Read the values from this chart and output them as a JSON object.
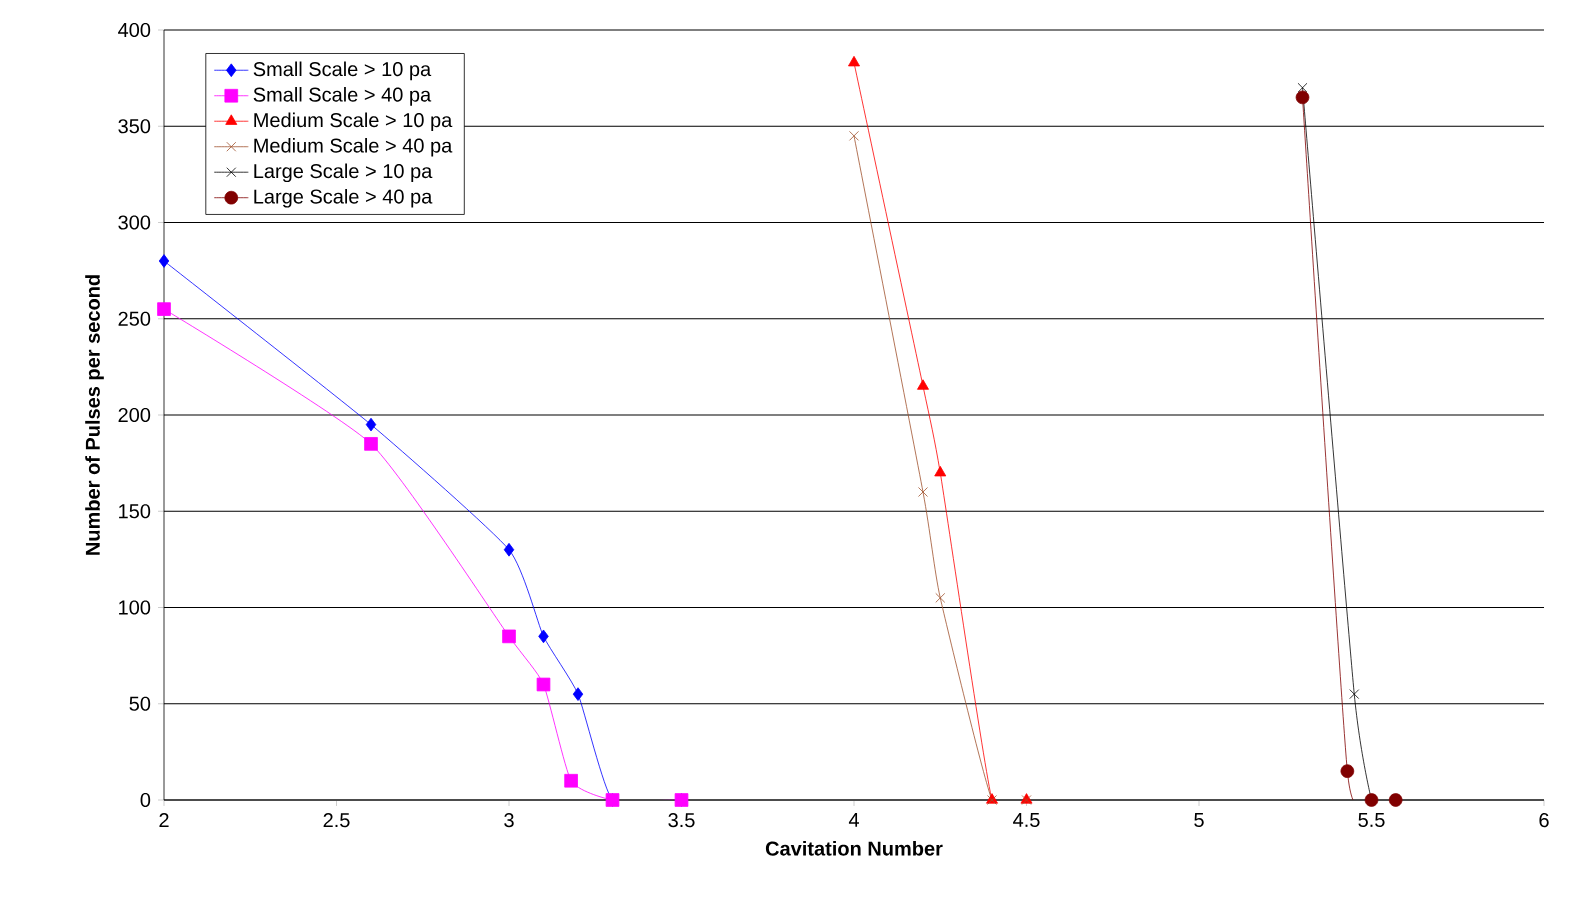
{
  "chart_data": {
    "type": "line",
    "xlabel": "Cavitation Number",
    "ylabel": "Number of Pulses per second",
    "xlim": [
      2,
      6
    ],
    "xticks": [
      2,
      2.5,
      3,
      3.5,
      4,
      4.5,
      5,
      5.5,
      6
    ],
    "ylim": [
      0,
      400
    ],
    "yticks": [
      0,
      50,
      100,
      150,
      200,
      250,
      300,
      350,
      400
    ],
    "grid": "y",
    "legend": "top left",
    "series": [
      {
        "name": "Small Scale  > 10 pa",
        "color": "#0000ff",
        "marker": "diamond",
        "x": [
          2,
          2.6,
          3,
          3.1,
          3.2,
          3.3,
          3.5
        ],
        "values": [
          280,
          195,
          130,
          85,
          55,
          0,
          0
        ]
      },
      {
        "name": "Small Scale  > 40 pa",
        "color": "#ff00ff",
        "marker": "square",
        "x": [
          2,
          2.6,
          3,
          3.1,
          3.18,
          3.3,
          3.5
        ],
        "values": [
          255,
          185,
          85,
          60,
          10,
          0,
          0
        ]
      },
      {
        "name": "Medium Scale > 10 pa",
        "color": "#ff0000",
        "marker": "triangle",
        "x": [
          4.0,
          4.2,
          4.25,
          4.4,
          4.5
        ],
        "values": [
          383,
          215,
          170,
          0,
          0
        ]
      },
      {
        "name": "Medium Scale > 40 pa",
        "color": "#a0522d",
        "marker": "cross",
        "x": [
          4.0,
          4.2,
          4.25,
          4.4,
          4.5
        ],
        "values": [
          345,
          160,
          105,
          0,
          0
        ]
      },
      {
        "name": "Large Scale > 10 pa",
        "color": "#000000",
        "marker": "cross",
        "x": [
          5.3,
          5.45,
          5.5
        ],
        "values": [
          370,
          55,
          0
        ]
      },
      {
        "name": "Large Scale > 40 pa",
        "color": "#800000",
        "marker": "circle",
        "x": [
          5.3,
          5.43,
          5.5,
          5.57
        ],
        "values": [
          365,
          15,
          0,
          0
        ]
      }
    ]
  }
}
